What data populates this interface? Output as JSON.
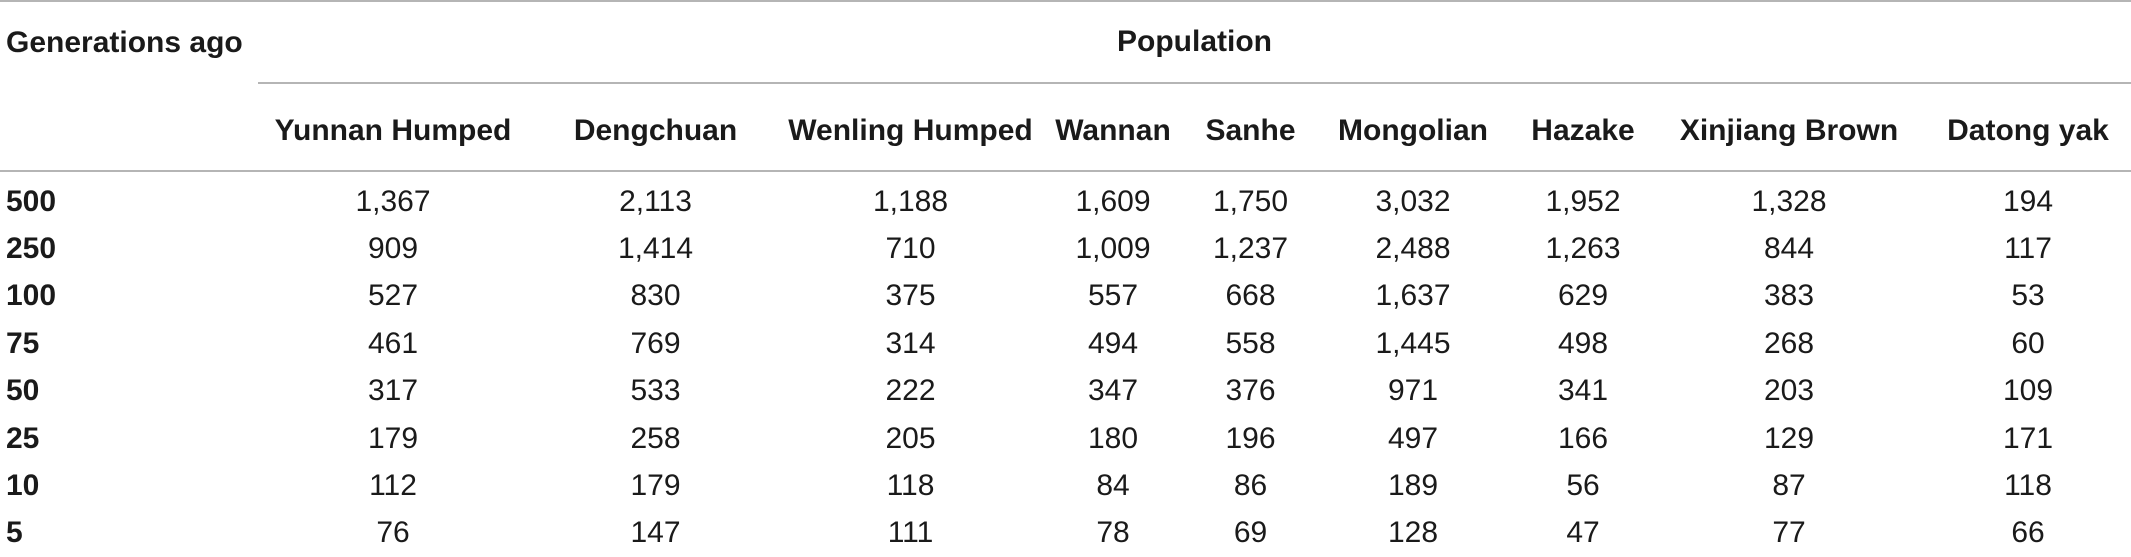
{
  "table": {
    "row_header_label": "Generations ago",
    "group_header_label": "Population",
    "columns": [
      "Yunnan Humped",
      "Dengchuan",
      "Wenling Humped",
      "Wannan",
      "Sanhe",
      "Mongolian",
      "Hazake",
      "Xinjiang Brown",
      "Datong yak"
    ],
    "rows": [
      {
        "label": "500",
        "values": [
          "1,367",
          "2,113",
          "1,188",
          "1,609",
          "1,750",
          "3,032",
          "1,952",
          "1,328",
          "194"
        ]
      },
      {
        "label": "250",
        "values": [
          "909",
          "1,414",
          "710",
          "1,009",
          "1,237",
          "2,488",
          "1,263",
          "844",
          "117"
        ]
      },
      {
        "label": "100",
        "values": [
          "527",
          "830",
          "375",
          "557",
          "668",
          "1,637",
          "629",
          "383",
          "53"
        ]
      },
      {
        "label": "75",
        "values": [
          "461",
          "769",
          "314",
          "494",
          "558",
          "1,445",
          "498",
          "268",
          "60"
        ]
      },
      {
        "label": "50",
        "values": [
          "317",
          "533",
          "222",
          "347",
          "376",
          "971",
          "341",
          "203",
          "109"
        ]
      },
      {
        "label": "25",
        "values": [
          "179",
          "258",
          "205",
          "180",
          "196",
          "497",
          "166",
          "129",
          "171"
        ]
      },
      {
        "label": "10",
        "values": [
          "112",
          "179",
          "118",
          "84",
          "86",
          "189",
          "56",
          "87",
          "118"
        ]
      },
      {
        "label": "5",
        "values": [
          "76",
          "147",
          "111",
          "78",
          "69",
          "128",
          "47",
          "77",
          "66"
        ]
      }
    ]
  }
}
